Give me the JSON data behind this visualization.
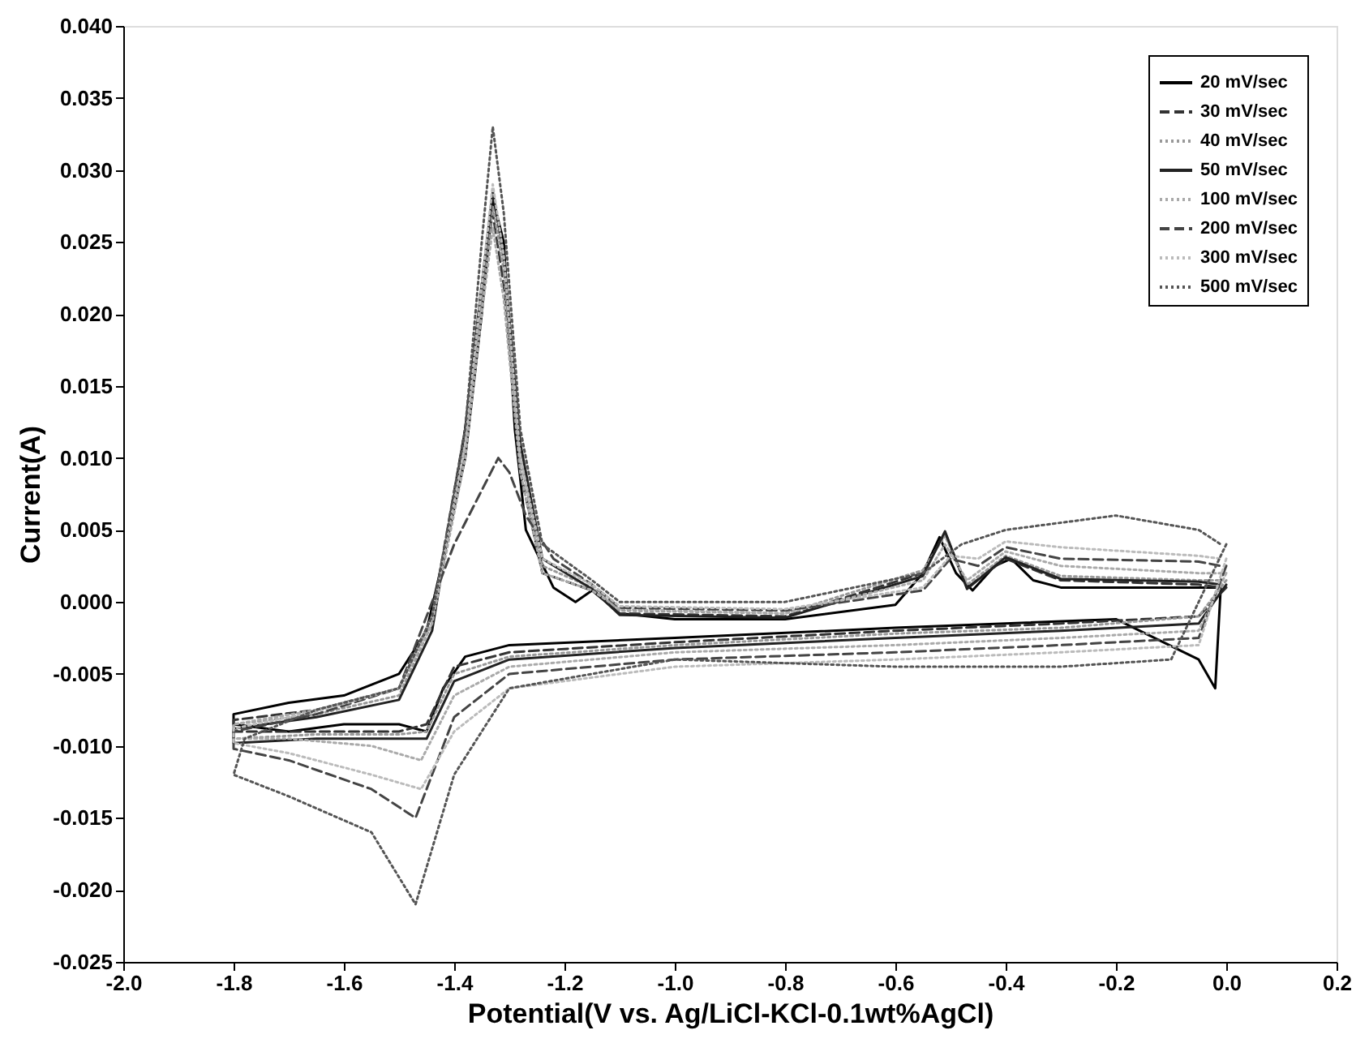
{
  "chart_data": {
    "type": "line",
    "xlabel": "Potential(V vs. Ag/LiCl-KCl-0.1wt%AgCl)",
    "ylabel": "Current(A)",
    "xlim": [
      -2.0,
      0.2
    ],
    "ylim": [
      -0.025,
      0.04
    ],
    "xticks": [
      {
        "value": -2.0,
        "label": "-2.0"
      },
      {
        "value": -1.8,
        "label": "-1.8"
      },
      {
        "value": -1.6,
        "label": "-1.6"
      },
      {
        "value": -1.4,
        "label": "-1.4"
      },
      {
        "value": -1.2,
        "label": "-1.2"
      },
      {
        "value": -1.0,
        "label": "-1.0"
      },
      {
        "value": -0.8,
        "label": "-0.8"
      },
      {
        "value": -0.6,
        "label": "-0.6"
      },
      {
        "value": -0.4,
        "label": "-0.4"
      },
      {
        "value": -0.2,
        "label": "-0.2"
      },
      {
        "value": 0.0,
        "label": "0.0"
      },
      {
        "value": 0.2,
        "label": "0.2"
      }
    ],
    "yticks": [
      {
        "value": -0.025,
        "label": "-0.025"
      },
      {
        "value": -0.02,
        "label": "-0.020"
      },
      {
        "value": -0.015,
        "label": "-0.015"
      },
      {
        "value": -0.01,
        "label": "-0.010"
      },
      {
        "value": -0.005,
        "label": "-0.005"
      },
      {
        "value": 0.0,
        "label": "0.000"
      },
      {
        "value": 0.005,
        "label": "0.005"
      },
      {
        "value": 0.01,
        "label": "0.010"
      },
      {
        "value": 0.015,
        "label": "0.015"
      },
      {
        "value": 0.02,
        "label": "0.020"
      },
      {
        "value": 0.025,
        "label": "0.025"
      },
      {
        "value": 0.03,
        "label": "0.030"
      },
      {
        "value": 0.035,
        "label": "0.035"
      },
      {
        "value": 0.04,
        "label": "0.040"
      }
    ],
    "grid": false,
    "legend": "top right",
    "series": [
      {
        "name": "20 mV/sec",
        "color": "#000000",
        "line_style": "solid",
        "x": [
          -0.01,
          -0.02,
          -0.05,
          -0.2,
          -0.6,
          -1.0,
          -1.3,
          -1.38,
          -1.42,
          -1.45,
          -1.5,
          -1.6,
          -1.7,
          -1.8,
          -1.8,
          -1.7,
          -1.6,
          -1.5,
          -1.45,
          -1.42,
          -1.38,
          -1.35,
          -1.33,
          -1.31,
          -1.29,
          -1.27,
          -1.22,
          -1.18,
          -1.15,
          -1.1,
          -1.0,
          -0.8,
          -0.6,
          -0.55,
          -0.52,
          -0.49,
          -0.46,
          -0.42,
          -0.39,
          -0.35,
          -0.3,
          -0.1,
          -0.02
        ],
        "values": [
          0.001,
          -0.006,
          -0.004,
          -0.0012,
          -0.0018,
          -0.0025,
          -0.003,
          -0.0038,
          -0.006,
          -0.009,
          -0.0085,
          -0.0085,
          -0.009,
          -0.0085,
          -0.0078,
          -0.007,
          -0.0065,
          -0.005,
          -0.002,
          0.003,
          0.01,
          0.02,
          0.028,
          0.025,
          0.012,
          0.005,
          0.001,
          0.0,
          0.0008,
          -0.0008,
          -0.0012,
          -0.0012,
          -0.0002,
          0.002,
          0.0045,
          0.002,
          0.0008,
          0.0025,
          0.003,
          0.0015,
          0.001,
          0.001,
          0.001
        ]
      },
      {
        "name": "30 mV/sec",
        "color": "#333333",
        "line_style": "dashed",
        "x": [
          0,
          -0.05,
          -0.3,
          -0.6,
          -1.0,
          -1.3,
          -1.4,
          -1.45,
          -1.5,
          -1.65,
          -1.8,
          -1.8,
          -1.65,
          -1.5,
          -1.44,
          -1.38,
          -1.35,
          -1.33,
          -1.31,
          -1.28,
          -1.24,
          -1.15,
          -1.1,
          -0.8,
          -0.55,
          -0.51,
          -0.47,
          -0.4,
          -0.3,
          -0.05,
          -0.01
        ],
        "values": [
          0.001,
          -0.001,
          -0.0015,
          -0.002,
          -0.0028,
          -0.0035,
          -0.0045,
          -0.0085,
          -0.009,
          -0.009,
          -0.009,
          -0.0082,
          -0.0075,
          -0.006,
          -0.001,
          0.012,
          0.022,
          0.027,
          0.022,
          0.009,
          0.002,
          0.0008,
          -0.0008,
          -0.001,
          0.002,
          0.0048,
          0.001,
          0.003,
          0.0015,
          0.0012,
          0.001
        ]
      },
      {
        "name": "40 mV/sec",
        "color": "#999999",
        "line_style": "dotted",
        "x": [
          0,
          -0.05,
          -0.3,
          -0.6,
          -1.0,
          -1.3,
          -1.4,
          -1.45,
          -1.5,
          -1.65,
          -1.8,
          -1.8,
          -1.65,
          -1.5,
          -1.44,
          -1.38,
          -1.35,
          -1.33,
          -1.31,
          -1.28,
          -1.24,
          -1.15,
          -1.1,
          -0.8,
          -0.55,
          -0.51,
          -0.47,
          -0.4,
          -0.3,
          -0.05,
          -0.01
        ],
        "values": [
          0.0015,
          -0.001,
          -0.0018,
          -0.0022,
          -0.003,
          -0.0038,
          -0.005,
          -0.009,
          -0.0092,
          -0.0092,
          -0.0095,
          -0.0085,
          -0.0078,
          -0.0065,
          -0.0015,
          0.011,
          0.021,
          0.0275,
          0.023,
          0.01,
          0.0025,
          0.001,
          -0.0006,
          -0.0008,
          0.0022,
          0.0046,
          0.0012,
          0.0032,
          0.0018,
          0.0015,
          0.0015
        ]
      },
      {
        "name": "50 mV/sec",
        "color": "#222222",
        "line_style": "solid",
        "x": [
          0,
          -0.05,
          -0.3,
          -0.6,
          -1.0,
          -1.3,
          -1.4,
          -1.45,
          -1.5,
          -1.65,
          -1.8,
          -1.8,
          -1.65,
          -1.5,
          -1.44,
          -1.38,
          -1.35,
          -1.33,
          -1.31,
          -1.28,
          -1.24,
          -1.15,
          -1.1,
          -0.8,
          -0.55,
          -0.51,
          -0.47,
          -0.4,
          -0.3,
          -0.05,
          -0.01
        ],
        "values": [
          0.0012,
          -0.0015,
          -0.002,
          -0.0025,
          -0.0032,
          -0.004,
          -0.0055,
          -0.0095,
          -0.0095,
          -0.0095,
          -0.0098,
          -0.0088,
          -0.008,
          -0.0068,
          -0.002,
          0.012,
          0.022,
          0.0285,
          0.024,
          0.011,
          0.003,
          0.0009,
          -0.0009,
          -0.0011,
          0.0018,
          0.0049,
          0.0009,
          0.0031,
          0.0016,
          0.0014,
          0.0012
        ]
      },
      {
        "name": "100 mV/sec",
        "color": "#aaaaaa",
        "line_style": "dotted",
        "x": [
          0,
          -0.05,
          -0.3,
          -0.6,
          -1.0,
          -1.3,
          -1.4,
          -1.46,
          -1.55,
          -1.7,
          -1.8,
          -1.8,
          -1.65,
          -1.5,
          -1.44,
          -1.38,
          -1.35,
          -1.33,
          -1.31,
          -1.28,
          -1.24,
          -1.15,
          -1.1,
          -0.8,
          -0.55,
          -0.51,
          -0.47,
          -0.4,
          -0.3,
          -0.05,
          -0.01
        ],
        "values": [
          0.002,
          -0.002,
          -0.0025,
          -0.003,
          -0.0035,
          -0.0045,
          -0.0065,
          -0.011,
          -0.01,
          -0.0095,
          -0.0095,
          -0.0085,
          -0.0075,
          -0.006,
          -0.0015,
          0.01,
          0.02,
          0.026,
          0.021,
          0.009,
          0.002,
          0.0008,
          -0.0005,
          -0.0008,
          0.0015,
          0.004,
          0.0015,
          0.0035,
          0.0025,
          0.002,
          0.002
        ]
      },
      {
        "name": "200 mV/sec",
        "color": "#444444",
        "line_style": "dashed",
        "x": [
          0,
          -0.05,
          -0.3,
          -0.6,
          -1.0,
          -1.3,
          -1.4,
          -1.47,
          -1.55,
          -1.7,
          -1.8,
          -1.8,
          -1.65,
          -1.5,
          -1.44,
          -1.4,
          -1.36,
          -1.32,
          -1.3,
          -1.27,
          -1.22,
          -1.15,
          -1.1,
          -0.8,
          -0.55,
          -0.5,
          -0.45,
          -0.4,
          -0.3,
          -0.05,
          -0.01
        ],
        "values": [
          0.0025,
          -0.0025,
          -0.003,
          -0.0035,
          -0.004,
          -0.005,
          -0.008,
          -0.015,
          -0.013,
          -0.011,
          -0.0102,
          -0.009,
          -0.0078,
          -0.006,
          0.0,
          0.004,
          0.007,
          0.01,
          0.009,
          0.006,
          0.003,
          0.0012,
          -0.0004,
          -0.0006,
          0.0008,
          0.003,
          0.0025,
          0.0038,
          0.003,
          0.0028,
          0.0025
        ]
      },
      {
        "name": "300 mV/sec",
        "color": "#bbbbbb",
        "line_style": "dotted",
        "x": [
          0,
          -0.05,
          -0.3,
          -0.6,
          -1.0,
          -1.3,
          -1.4,
          -1.46,
          -1.55,
          -1.7,
          -1.8,
          -1.8,
          -1.65,
          -1.5,
          -1.44,
          -1.38,
          -1.35,
          -1.33,
          -1.31,
          -1.28,
          -1.24,
          -1.15,
          -1.1,
          -0.8,
          -0.55,
          -0.5,
          -0.45,
          -0.4,
          -0.3,
          -0.05,
          -0.01
        ],
        "values": [
          0.003,
          -0.003,
          -0.0035,
          -0.004,
          -0.0045,
          -0.006,
          -0.009,
          -0.013,
          -0.012,
          -0.0105,
          -0.0098,
          -0.0088,
          -0.0076,
          -0.006,
          -0.001,
          0.011,
          0.022,
          0.029,
          0.024,
          0.01,
          0.003,
          0.0012,
          -0.0003,
          -0.0005,
          0.001,
          0.0032,
          0.003,
          0.0042,
          0.0038,
          0.0032,
          0.003
        ]
      },
      {
        "name": "500 mV/sec",
        "color": "#555555",
        "line_style": "dotted",
        "x": [
          0,
          -0.1,
          -0.3,
          -0.6,
          -1.0,
          -1.3,
          -1.4,
          -1.47,
          -1.55,
          -1.7,
          -1.8,
          -1.78,
          -1.65,
          -1.5,
          -1.44,
          -1.38,
          -1.35,
          -1.33,
          -1.31,
          -1.28,
          -1.24,
          -1.15,
          -1.1,
          -0.8,
          -0.55,
          -0.48,
          -0.4,
          -0.3,
          -0.2,
          -0.05,
          -0.01
        ],
        "values": [
          0.004,
          -0.004,
          -0.0045,
          -0.0045,
          -0.004,
          -0.006,
          -0.012,
          -0.021,
          -0.016,
          -0.0135,
          -0.012,
          -0.0095,
          -0.0075,
          -0.006,
          -0.001,
          0.012,
          0.025,
          0.033,
          0.027,
          0.012,
          0.004,
          0.0015,
          0.0,
          0.0,
          0.002,
          0.004,
          0.005,
          0.0055,
          0.006,
          0.005,
          0.004
        ]
      }
    ]
  }
}
